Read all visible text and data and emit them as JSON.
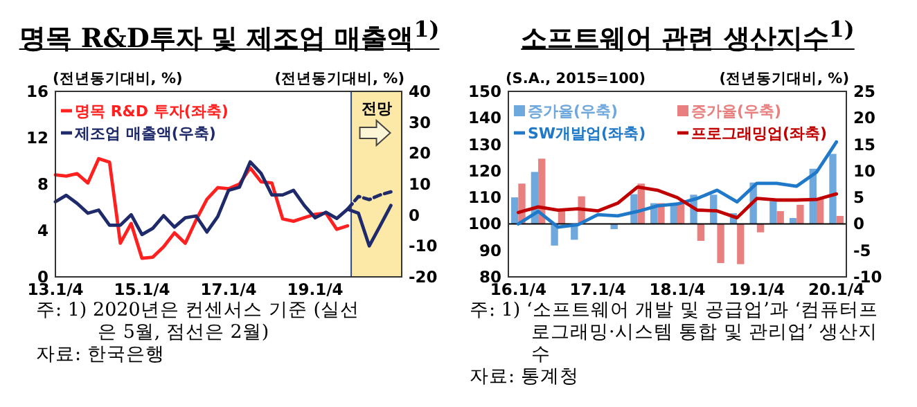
{
  "chart_data": [
    {
      "type": "line",
      "title": "명목 R&D투자 및 제조업 매출액$^{1)}$",
      "ylabel": "(전년동기대비, %)",
      "y2label": "(전년동기대비, %)",
      "x": [
        "2013-01",
        "2013-04",
        "2013-07",
        "2013-10",
        "2014-01",
        "2014-04",
        "2014-07",
        "2014-10",
        "2015-01",
        "2015-04",
        "2015-07",
        "2015-10",
        "2016-01",
        "2016-04",
        "2016-07",
        "2016-10",
        "2017-01",
        "2017-04",
        "2017-07",
        "2017-10",
        "2018-01",
        "2018-04",
        "2018-07",
        "2018-10",
        "2019-01",
        "2019-04",
        "2019-07",
        "2019-10",
        "2020-01",
        "2020-04",
        "2020-07",
        "2020-10"
      ],
      "xlim": [
        "2013-01",
        "2021-01"
      ],
      "xticks": [
        {
          "value": "2013-01",
          "label": "13.1/4"
        },
        {
          "value": "2015-01",
          "label": "15.1/4"
        },
        {
          "value": "2017-01",
          "label": "17.1/4"
        },
        {
          "value": "2019-01",
          "label": "19.1/4"
        }
      ],
      "ylim": [
        0,
        16
      ],
      "yticks": [
        0,
        4,
        8,
        12,
        16
      ],
      "y2lim": [
        -20,
        40
      ],
      "y2ticks": [
        -20,
        -10,
        0,
        10,
        20,
        30,
        40
      ],
      "series": [
        {
          "name": "명목 R&D 투자(좌축)",
          "color": "#ff2020",
          "values": [
            8.8,
            8.7,
            8.9,
            8.1,
            10.2,
            9.9,
            2.9,
            4.6,
            1.6,
            1.7,
            2.6,
            3.8,
            2.9,
            4.9,
            6.7,
            7.7,
            7.6,
            8.0,
            9.4,
            8.2,
            8.1,
            5.0,
            4.8,
            5.1,
            5.4,
            5.5,
            4.1,
            4.4,
            null,
            null,
            null,
            null
          ]
        },
        {
          "name": "제조업 매출액(우축)",
          "color": "#1f2a6b",
          "axis": "y2",
          "values": [
            4.3,
            6.4,
            3.8,
            0.6,
            1.6,
            -3.3,
            -3.3,
            0.1,
            -6.3,
            -4.3,
            -0.2,
            -3.9,
            -0.9,
            -0.3,
            -5.5,
            -0.5,
            8.0,
            9.0,
            17.2,
            13.5,
            6.5,
            6.5,
            8.0,
            3.1,
            -0.9,
            0.9,
            -1.1,
            1.9,
            0.6,
            -10,
            -3.5,
            3.1
          ]
        },
        {
          "color": "#1f2a6b",
          "axis": "y2",
          "line_style": "dashed",
          "values": [
            null,
            null,
            null,
            null,
            null,
            null,
            null,
            null,
            null,
            null,
            null,
            null,
            null,
            null,
            null,
            null,
            null,
            null,
            null,
            null,
            null,
            null,
            null,
            null,
            null,
            null,
            null,
            1.9,
            6.0,
            5.0,
            6.5,
            7.5
          ]
        }
      ],
      "bands": [
        {
          "axis": "x",
          "from": "2019-11",
          "to": "2021-01",
          "label": "전망",
          "color": "#fce9a8"
        }
      ],
      "legend": "top left",
      "annotations": [
        "주: 1) 2020년은 컨센서스 기준 (실선은 5월, 점선은 2월)",
        "자료: 한국은행"
      ]
    },
    {
      "type": "bar",
      "title": "소프트웨어 관련 생산지수$^{1)}$",
      "ylabel": "(S.A., 2015=100)",
      "y2label": "(전년동기대비, %)",
      "categories": [
        "16.1/4",
        null,
        null,
        null,
        "17.1/4",
        null,
        null,
        null,
        "18.1/4",
        null,
        null,
        null,
        "19.1/4",
        null,
        null,
        null,
        "20.1/4"
      ],
      "ylim": [
        80,
        150
      ],
      "yticks": [
        80,
        90,
        100,
        110,
        120,
        130,
        140,
        150
      ],
      "y2lim": [
        -10,
        25
      ],
      "y2ticks": [
        -10,
        -5,
        0,
        5,
        10,
        15,
        20,
        25
      ],
      "series": [
        {
          "name": "증가율(우축)",
          "color": "#6fa8dc",
          "axis": "y2",
          "values": [
            5.0,
            9.8,
            -4.1,
            -3.0,
            null,
            -1.0,
            5.6,
            3.9,
            3.7,
            5.5,
            5.5,
            2.0,
            7.8,
            4.3,
            1.1,
            10.4,
            13.2
          ]
        },
        {
          "name": "증가율(우축)",
          "color": "#e88080",
          "axis": "y2",
          "values": [
            7.6,
            12.3,
            2.6,
            5.2,
            null,
            null,
            7.6,
            3.9,
            3.9,
            -3.2,
            -7.4,
            -7.6,
            -1.6,
            2.4,
            3.6,
            4.8,
            1.5
          ]
        },
        {
          "name": "SW개발업(좌축)",
          "type": "line",
          "color": "#1f78c8",
          "values": [
            100,
            104.7,
            98.8,
            99.7,
            103.5,
            103.0,
            104.7,
            106.8,
            107.5,
            109.6,
            112.7,
            108.3,
            115.3,
            115.3,
            114.2,
            119.5,
            130.9
          ]
        },
        {
          "name": "프로그래밍업(좌축)",
          "type": "line",
          "color": "#c00000",
          "values": [
            104.3,
            106.4,
            105.2,
            105.7,
            104.9,
            107.8,
            113.9,
            112.7,
            109.9,
            105.2,
            104.9,
            102.3,
            109.6,
            109.0,
            109.0,
            109.2,
            111.3
          ]
        }
      ],
      "legend": "top left",
      "annotations": [
        "주: 1) ‘소프트웨어 개발 및 공급업’과 ‘컴퓨터프로그래밍·시스템 통합 및 관리업’ 생산지수",
        "자료: 통계청"
      ]
    }
  ]
}
